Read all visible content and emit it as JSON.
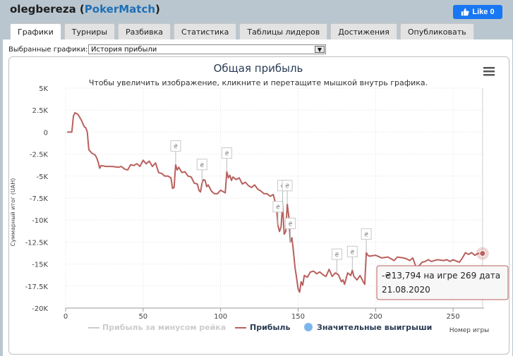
{
  "header": {
    "player": "olegbereza",
    "site": "PokerMatch",
    "fb_like": "Like 0"
  },
  "tabs": [
    {
      "label": "Графики",
      "active": true
    },
    {
      "label": "Турниры",
      "active": false
    },
    {
      "label": "Разбивка",
      "active": false
    },
    {
      "label": "Статистика",
      "active": false
    },
    {
      "label": "Таблицы лидеров",
      "active": false
    },
    {
      "label": "Достижения",
      "active": false
    },
    {
      "label": "Опубликовать",
      "active": false
    }
  ],
  "selector": {
    "label": "Выбранные графики:",
    "value": "История прибыли"
  },
  "chart_data": {
    "type": "line",
    "title": "Общая прибыль",
    "subtitle": "Чтобы увеличить изображение, кликните и перетащите мышкой внутрь графика.",
    "ylabel": "Суммарный итог (UAH)",
    "xlabel": "Номер игры",
    "xlim": [
      0,
      270
    ],
    "ylim": [
      -20000,
      5000
    ],
    "x_ticks": [
      "0",
      "50",
      "100",
      "150",
      "200",
      "250"
    ],
    "x_tick_values": [
      0,
      50,
      100,
      150,
      200,
      250
    ],
    "y_ticks": [
      "5K",
      "2.5K",
      "0",
      "-2.5K",
      "-5K",
      "-7.5K",
      "-10K",
      "-12.5K",
      "-15K",
      "-17.5K",
      "-20K"
    ],
    "y_tick_values": [
      5000,
      2500,
      0,
      -2500,
      -5000,
      -7500,
      -10000,
      -12500,
      -15000,
      -17500,
      -20000
    ],
    "grid": true,
    "legend_position": "bottom",
    "series": [
      {
        "name": "Прибыль за минусом рейка",
        "color": "#cccccc",
        "visible": false,
        "points": []
      },
      {
        "name": "Прибыль",
        "color": "#b9605d",
        "points": [
          [
            1,
            0
          ],
          [
            3,
            0
          ],
          [
            4,
            0
          ],
          [
            5,
            1800
          ],
          [
            6,
            2200
          ],
          [
            8,
            2000
          ],
          [
            9,
            1700
          ],
          [
            10,
            1400
          ],
          [
            12,
            600
          ],
          [
            13,
            500
          ],
          [
            14,
            0
          ],
          [
            15,
            -2000
          ],
          [
            17,
            -2400
          ],
          [
            19,
            -2600
          ],
          [
            20,
            -2900
          ],
          [
            21,
            -3400
          ],
          [
            22,
            -4100
          ],
          [
            23,
            -3800
          ],
          [
            26,
            -3900
          ],
          [
            30,
            -3900
          ],
          [
            34,
            -4000
          ],
          [
            36,
            -3900
          ],
          [
            38,
            -4200
          ],
          [
            40,
            -4300
          ],
          [
            42,
            -3700
          ],
          [
            44,
            -3800
          ],
          [
            46,
            -3600
          ],
          [
            48,
            -3900
          ],
          [
            50,
            -3200
          ],
          [
            52,
            -3600
          ],
          [
            54,
            -3300
          ],
          [
            56,
            -3900
          ],
          [
            58,
            -3500
          ],
          [
            60,
            -4600
          ],
          [
            62,
            -4700
          ],
          [
            64,
            -5000
          ],
          [
            66,
            -5000
          ],
          [
            68,
            -5200
          ],
          [
            69,
            -6400
          ],
          [
            70,
            -6300
          ],
          [
            71,
            -3700
          ],
          [
            72,
            -4300
          ],
          [
            73,
            -4000
          ],
          [
            75,
            -4600
          ],
          [
            77,
            -4500
          ],
          [
            79,
            -5000
          ],
          [
            81,
            -5100
          ],
          [
            83,
            -5800
          ],
          [
            85,
            -5900
          ],
          [
            86,
            -6600
          ],
          [
            87,
            -6800
          ],
          [
            88,
            -5800
          ],
          [
            89,
            -5400
          ],
          [
            90,
            -5500
          ],
          [
            91,
            -6200
          ],
          [
            92,
            -6000
          ],
          [
            94,
            -6700
          ],
          [
            96,
            -7000
          ],
          [
            98,
            -7000
          ],
          [
            100,
            -6600
          ],
          [
            102,
            -6800
          ],
          [
            103,
            -6900
          ],
          [
            104,
            -4500
          ],
          [
            105,
            -5200
          ],
          [
            106,
            -4900
          ],
          [
            107,
            -5500
          ],
          [
            108,
            -5100
          ],
          [
            110,
            -5400
          ],
          [
            112,
            -5200
          ],
          [
            114,
            -5900
          ],
          [
            116,
            -5700
          ],
          [
            118,
            -6100
          ],
          [
            120,
            -6300
          ],
          [
            122,
            -6000
          ],
          [
            124,
            -6500
          ],
          [
            126,
            -6700
          ],
          [
            128,
            -7000
          ],
          [
            130,
            -7000
          ],
          [
            132,
            -7300
          ],
          [
            134,
            -7100
          ],
          [
            135,
            -7800
          ],
          [
            136,
            -8400
          ],
          [
            137,
            -10600
          ],
          [
            138,
            -11300
          ],
          [
            139,
            -10800
          ],
          [
            140,
            -8200
          ],
          [
            141,
            -11600
          ],
          [
            142,
            -11300
          ],
          [
            143,
            -8200
          ],
          [
            144,
            -9600
          ],
          [
            145,
            -12500
          ],
          [
            146,
            -12000
          ],
          [
            147,
            -13600
          ],
          [
            148,
            -15400
          ],
          [
            149,
            -16500
          ],
          [
            150,
            -17800
          ],
          [
            151,
            -18200
          ],
          [
            152,
            -17000
          ],
          [
            153,
            -17400
          ],
          [
            154,
            -16300
          ],
          [
            156,
            -16500
          ],
          [
            158,
            -15900
          ],
          [
            160,
            -15800
          ],
          [
            162,
            -16100
          ],
          [
            164,
            -15900
          ],
          [
            166,
            -16200
          ],
          [
            168,
            -16400
          ],
          [
            170,
            -15600
          ],
          [
            172,
            -16400
          ],
          [
            174,
            -16000
          ],
          [
            176,
            -16200
          ],
          [
            178,
            -17000
          ],
          [
            179,
            -16800
          ],
          [
            180,
            -17300
          ],
          [
            182,
            -16000
          ],
          [
            184,
            -16300
          ],
          [
            185,
            -15700
          ],
          [
            186,
            -16400
          ],
          [
            188,
            -16800
          ],
          [
            190,
            -16300
          ],
          [
            192,
            -17000
          ],
          [
            193,
            -17300
          ],
          [
            194,
            -13700
          ],
          [
            195,
            -14000
          ],
          [
            196,
            -14100
          ],
          [
            200,
            -14000
          ],
          [
            204,
            -14300
          ],
          [
            208,
            -14200
          ],
          [
            212,
            -14600
          ],
          [
            214,
            -14200
          ],
          [
            218,
            -14300
          ],
          [
            220,
            -14400
          ],
          [
            222,
            -14600
          ],
          [
            224,
            -14300
          ],
          [
            226,
            -15300
          ],
          [
            228,
            -15200
          ],
          [
            230,
            -14800
          ],
          [
            232,
            -14700
          ],
          [
            234,
            -14500
          ],
          [
            236,
            -14700
          ],
          [
            238,
            -14600
          ],
          [
            240,
            -14500
          ],
          [
            244,
            -14600
          ],
          [
            246,
            -14500
          ],
          [
            248,
            -14700
          ],
          [
            250,
            -14500
          ],
          [
            254,
            -14800
          ],
          [
            256,
            -14300
          ],
          [
            258,
            -13700
          ],
          [
            260,
            -13900
          ],
          [
            262,
            -13700
          ],
          [
            264,
            -14000
          ],
          [
            266,
            -13800
          ],
          [
            268,
            -13794
          ],
          [
            269,
            -13794
          ]
        ]
      },
      {
        "name": "Значительные выигрыши",
        "color": "#7cb5ec",
        "marker_label": "₴",
        "points": [
          [
            71,
            -3700
          ],
          [
            88,
            -5800
          ],
          [
            104,
            -4500
          ],
          [
            137,
            -10600
          ],
          [
            140,
            -8200
          ],
          [
            143,
            -8200
          ],
          [
            145,
            -12500
          ],
          [
            175,
            -16000
          ],
          [
            185,
            -15700
          ],
          [
            194,
            -13700
          ]
        ]
      }
    ],
    "tooltip": {
      "line1": "-₴13,794 на игре 269 дата",
      "line2": "21.08.2020",
      "point": [
        269,
        -13794
      ]
    }
  }
}
